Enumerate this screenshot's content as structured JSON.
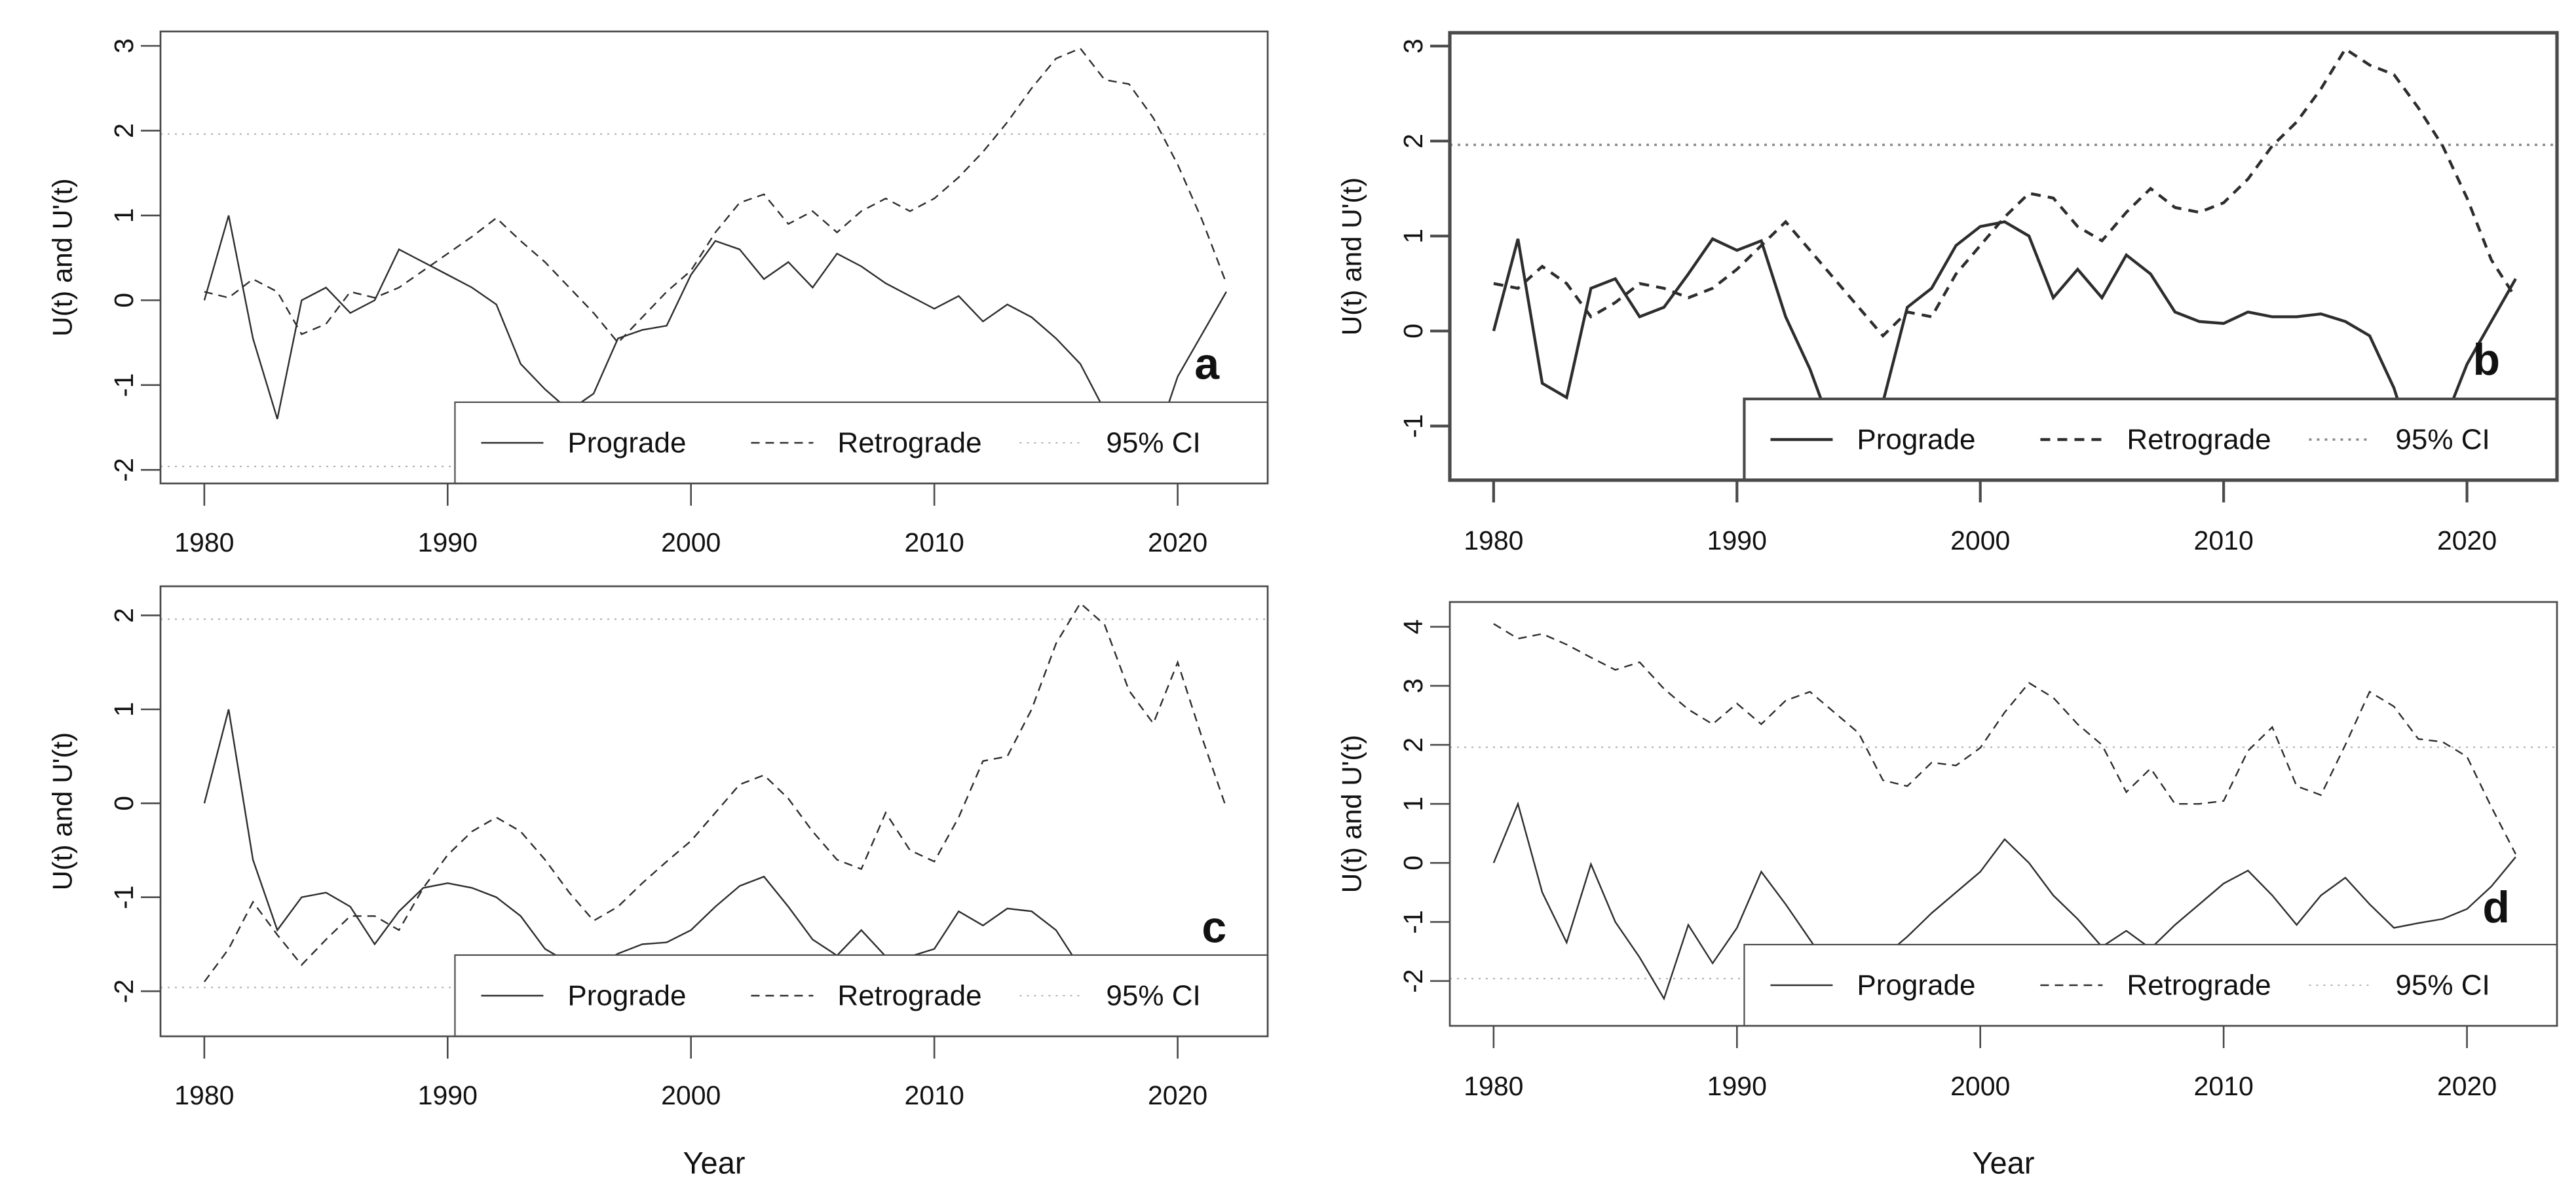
{
  "figure": {
    "background": "#ffffff",
    "description": "Four-panel line figure of sequential Mann-Kendall statistics U(t) and U'(t) versus Year for prograde and retrograde series"
  },
  "colors": {
    "curve": "#2d2d2d",
    "frame": "#4a4a4a",
    "ci_line": "#b0b0b0",
    "ci_line_bold": "#8a8a8a",
    "text": "#111111",
    "letter": "#000000",
    "legend_fill": "#ffffff"
  },
  "chart_data": {
    "type": "line",
    "xlabel": "Year",
    "ylabel": "U(t) and U'(t)",
    "x": [
      1980,
      1981,
      1982,
      1983,
      1984,
      1985,
      1986,
      1987,
      1988,
      1989,
      1990,
      1991,
      1992,
      1993,
      1994,
      1995,
      1996,
      1997,
      1998,
      1999,
      2000,
      2001,
      2002,
      2003,
      2004,
      2005,
      2006,
      2007,
      2008,
      2009,
      2010,
      2011,
      2012,
      2013,
      2014,
      2015,
      2016,
      2017,
      2018,
      2019,
      2020,
      2021,
      2022
    ],
    "x_ticks": [
      1980,
      1990,
      2000,
      2010,
      2020
    ],
    "xlim": [
      1978.2,
      2023.7
    ],
    "ci_value": 1.96,
    "legend": [
      "Prograde",
      "Retrograde",
      "95% CI"
    ],
    "legend_position": "bottom-right-inside",
    "legend_left_year": 1990.3,
    "grid": "off",
    "panels": [
      {
        "letter": "a",
        "letter_pos": [
          2021.2,
          -0.75
        ],
        "ylim": [
          -2.16,
          3.17
        ],
        "y_ticks": [
          -2,
          -1,
          0,
          1,
          2,
          3
        ],
        "bold": false,
        "show_xlabel": false,
        "series": [
          {
            "name": "Prograde",
            "style": "solid",
            "values": [
              0.0,
              1.0,
              -0.45,
              -1.4,
              0.0,
              0.15,
              -0.15,
              0.0,
              0.6,
              0.45,
              0.3,
              0.15,
              -0.05,
              -0.75,
              -1.05,
              -1.3,
              -1.1,
              -0.45,
              -0.35,
              -0.3,
              0.3,
              0.7,
              0.6,
              0.25,
              0.45,
              0.15,
              0.55,
              0.4,
              0.2,
              0.05,
              -0.1,
              0.05,
              -0.25,
              -0.05,
              -0.2,
              -0.45,
              -0.75,
              -1.3,
              -1.7,
              -1.75,
              -0.9,
              -0.4,
              0.1
            ]
          },
          {
            "name": "Retrograde",
            "style": "dashed",
            "values": [
              0.1,
              0.03,
              0.25,
              0.1,
              -0.4,
              -0.28,
              0.1,
              0.03,
              0.15,
              0.35,
              0.55,
              0.75,
              0.97,
              0.7,
              0.45,
              0.15,
              -0.15,
              -0.5,
              -0.2,
              0.1,
              0.35,
              0.8,
              1.15,
              1.25,
              0.9,
              1.05,
              0.8,
              1.05,
              1.2,
              1.05,
              1.2,
              1.45,
              1.75,
              2.1,
              2.5,
              2.85,
              2.97,
              2.6,
              2.55,
              2.15,
              1.6,
              0.95,
              0.2
            ]
          }
        ]
      },
      {
        "letter": "b",
        "letter_pos": [
          2020.8,
          -0.3
        ],
        "ylim": [
          -1.57,
          3.14
        ],
        "y_ticks": [
          -1,
          0,
          1,
          2,
          3
        ],
        "bold": true,
        "show_xlabel": false,
        "series": [
          {
            "name": "Prograde",
            "style": "solid",
            "values": [
              0.0,
              0.97,
              -0.55,
              -0.7,
              0.45,
              0.55,
              0.15,
              0.25,
              0.6,
              0.97,
              0.85,
              0.95,
              0.15,
              -0.4,
              -1.1,
              -1.4,
              -0.75,
              0.25,
              0.45,
              0.9,
              1.1,
              1.15,
              1.0,
              0.35,
              0.65,
              0.35,
              0.8,
              0.6,
              0.2,
              0.1,
              0.08,
              0.2,
              0.15,
              0.15,
              0.18,
              0.1,
              -0.05,
              -0.6,
              -1.4,
              -1.0,
              -0.35,
              0.1,
              0.55
            ]
          },
          {
            "name": "Retrograde",
            "style": "dashed",
            "values": [
              0.5,
              0.45,
              0.68,
              0.5,
              0.15,
              0.3,
              0.5,
              0.45,
              0.35,
              0.45,
              0.65,
              0.9,
              1.15,
              0.85,
              0.55,
              0.25,
              -0.05,
              0.2,
              0.15,
              0.6,
              0.9,
              1.2,
              1.45,
              1.4,
              1.1,
              0.95,
              1.25,
              1.5,
              1.3,
              1.25,
              1.35,
              1.6,
              1.95,
              2.2,
              2.55,
              2.97,
              2.8,
              2.7,
              2.35,
              1.95,
              1.4,
              0.75,
              0.35
            ]
          }
        ]
      },
      {
        "letter": "c",
        "letter_pos": [
          2021.5,
          -1.32
        ],
        "ylim": [
          -2.48,
          2.31
        ],
        "y_ticks": [
          -2,
          -1,
          0,
          1,
          2
        ],
        "bold": false,
        "show_xlabel": true,
        "series": [
          {
            "name": "Prograde",
            "style": "solid",
            "values": [
              0.0,
              1.0,
              -0.6,
              -1.35,
              -1.0,
              -0.95,
              -1.1,
              -1.5,
              -1.15,
              -0.9,
              -0.85,
              -0.9,
              -1.0,
              -1.2,
              -1.55,
              -1.7,
              -1.75,
              -1.6,
              -1.5,
              -1.48,
              -1.35,
              -1.1,
              -0.88,
              -0.78,
              -1.1,
              -1.45,
              -1.62,
              -1.35,
              -1.63,
              -1.63,
              -1.55,
              -1.15,
              -1.3,
              -1.12,
              -1.15,
              -1.35,
              -1.75,
              -2.05,
              -2.2,
              -2.3,
              -2.25,
              -2.15,
              -2.05
            ]
          },
          {
            "name": "Retrograde",
            "style": "dashed",
            "values": [
              -1.9,
              -1.55,
              -1.05,
              -1.4,
              -1.72,
              -1.45,
              -1.2,
              -1.2,
              -1.35,
              -0.9,
              -0.55,
              -0.3,
              -0.15,
              -0.3,
              -0.6,
              -0.95,
              -1.25,
              -1.1,
              -0.85,
              -0.62,
              -0.4,
              -0.1,
              0.2,
              0.3,
              0.05,
              -0.3,
              -0.6,
              -0.7,
              -0.1,
              -0.5,
              -0.62,
              -0.15,
              0.45,
              0.5,
              1.0,
              1.7,
              2.13,
              1.9,
              1.2,
              0.85,
              1.5,
              0.7,
              -0.05
            ]
          }
        ]
      },
      {
        "letter": "d",
        "letter_pos": [
          2021.2,
          -0.75
        ],
        "ylim": [
          -2.76,
          4.42
        ],
        "y_ticks": [
          -2,
          -1,
          0,
          1,
          2,
          3,
          4
        ],
        "bold": false,
        "show_xlabel": true,
        "series": [
          {
            "name": "Prograde",
            "style": "solid",
            "values": [
              0.0,
              1.0,
              -0.5,
              -1.35,
              -0.02,
              -1.0,
              -1.6,
              -2.3,
              -1.05,
              -1.7,
              -1.1,
              -0.15,
              -0.7,
              -1.3,
              -1.9,
              -2.5,
              -1.6,
              -1.25,
              -0.85,
              -0.5,
              -0.15,
              0.4,
              0.0,
              -0.55,
              -0.95,
              -1.42,
              -1.15,
              -1.45,
              -1.05,
              -0.7,
              -0.35,
              -0.13,
              -0.55,
              -1.05,
              -0.55,
              -0.25,
              -0.7,
              -1.1,
              -1.02,
              -0.95,
              -0.78,
              -0.4,
              0.1
            ]
          },
          {
            "name": "Retrograde",
            "style": "dashed",
            "values": [
              4.05,
              3.8,
              3.88,
              3.7,
              3.48,
              3.27,
              3.4,
              2.95,
              2.6,
              2.35,
              2.7,
              2.35,
              2.75,
              2.9,
              2.55,
              2.2,
              1.4,
              1.3,
              1.7,
              1.65,
              1.95,
              2.55,
              3.05,
              2.8,
              2.35,
              2.0,
              1.2,
              1.6,
              1.0,
              1.0,
              1.05,
              1.9,
              2.3,
              1.3,
              1.15,
              2.0,
              2.9,
              2.65,
              2.1,
              2.05,
              1.8,
              0.95,
              0.15
            ]
          }
        ]
      }
    ]
  }
}
